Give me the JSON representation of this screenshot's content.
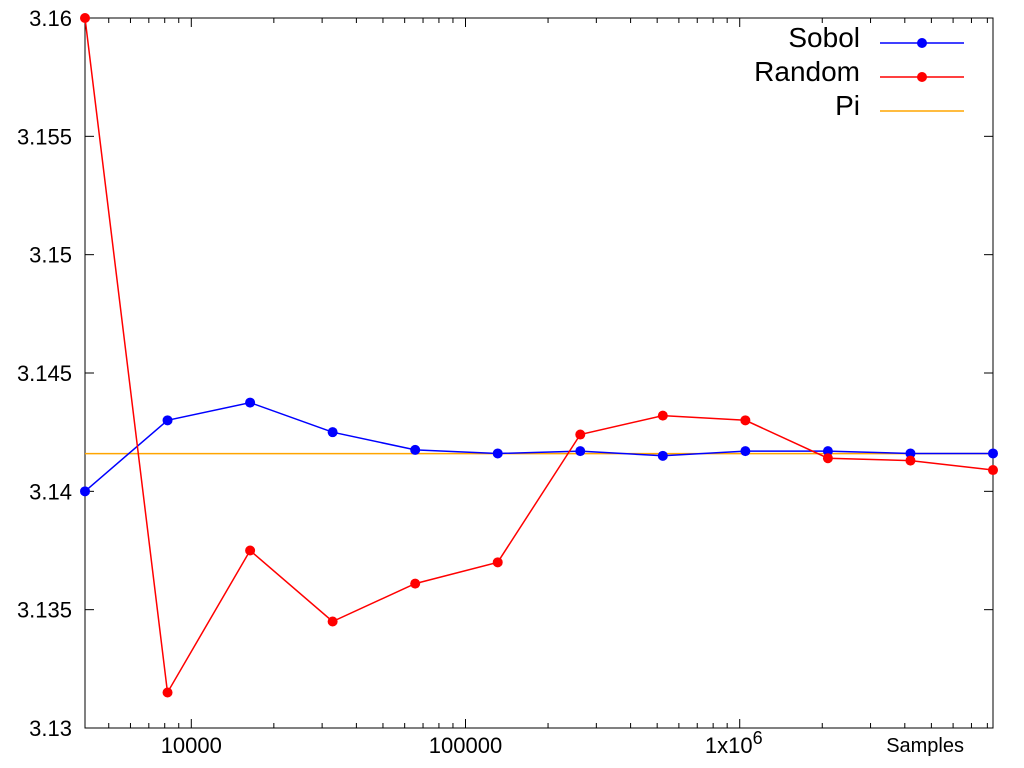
{
  "chart_data": {
    "type": "line",
    "xscale": "log",
    "xlim": [
      4096,
      8388608
    ],
    "ylim": [
      3.13,
      3.16
    ],
    "xlabel": "Samples",
    "ylabel": "",
    "title": "",
    "grid": false,
    "legend": "top-right",
    "x": [
      4096,
      8192,
      16384,
      32768,
      65536,
      131072,
      262144,
      524288,
      1048576,
      2097152,
      4194304,
      8388608
    ],
    "x_ticks": [
      {
        "value": 10000,
        "label": "10000"
      },
      {
        "value": 100000,
        "label": "100000"
      },
      {
        "value": 1000000,
        "label": "1x10",
        "sup": "6"
      }
    ],
    "y_ticks": [
      {
        "value": 3.13,
        "label": "3.13"
      },
      {
        "value": 3.135,
        "label": "3.135"
      },
      {
        "value": 3.14,
        "label": "3.14"
      },
      {
        "value": 3.145,
        "label": "3.145"
      },
      {
        "value": 3.15,
        "label": "3.15"
      },
      {
        "value": 3.155,
        "label": "3.155"
      },
      {
        "value": 3.16,
        "label": "3.16"
      }
    ],
    "series": [
      {
        "name": "Sobol",
        "color": "#0000ff",
        "marker": "circle",
        "values": [
          3.14,
          3.143,
          3.14375,
          3.1425,
          3.14175,
          3.1416,
          3.1417,
          3.1415,
          3.1417,
          3.1417,
          3.1416,
          3.1416
        ]
      },
      {
        "name": "Random",
        "color": "#ff0000",
        "marker": "circle",
        "values": [
          3.16,
          3.1315,
          3.1375,
          3.1345,
          3.1361,
          3.137,
          3.1424,
          3.1432,
          3.143,
          3.1414,
          3.1413,
          3.1409
        ]
      },
      {
        "name": "Pi",
        "color": "#ffa500",
        "marker": "none",
        "constant": 3.14159265
      }
    ]
  }
}
